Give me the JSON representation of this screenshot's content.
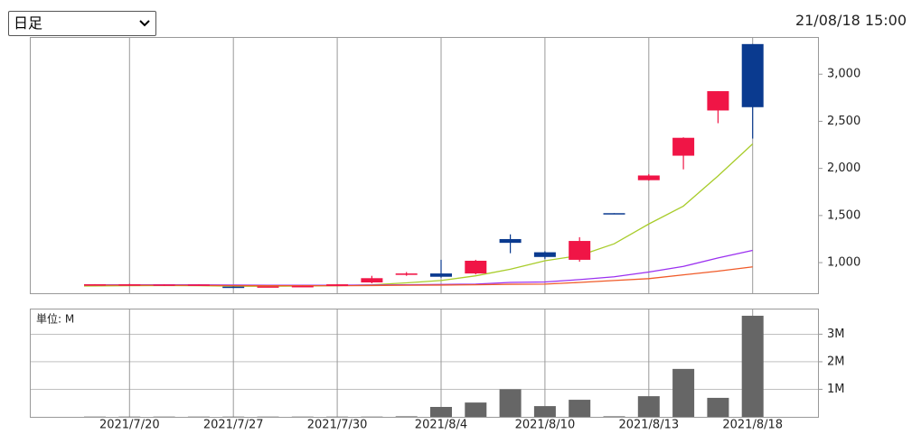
{
  "selector": "日足",
  "timestamp": "21/08/18 15:00",
  "chart_data": [
    {
      "type": "candlestick",
      "open": [
        770,
        755,
        755,
        758,
        745,
        745,
        748,
        752,
        790,
        870,
        885,
        885,
        1250,
        1110,
        1030,
        1525,
        1875,
        2135,
        2615,
        3320
      ],
      "high": [
        772,
        775,
        770,
        770,
        748,
        748,
        754,
        772,
        860,
        900,
        1030,
        1030,
        1300,
        1120,
        1270,
        1525,
        1940,
        2330,
        2820,
        3320
      ],
      "low": [
        768,
        752,
        752,
        755,
        730,
        743,
        746,
        750,
        780,
        860,
        840,
        875,
        1100,
        1040,
        1010,
        1520,
        1870,
        1990,
        2480,
        2317
      ],
      "close": [
        770,
        770,
        768,
        768,
        735,
        748,
        752,
        770,
        835,
        885,
        850,
        1020,
        1210,
        1060,
        1230,
        1520,
        1925,
        2325,
        2820,
        2650
      ],
      "up_color": "#f01546",
      "down_color": "#0a3a8f",
      "lines": [
        {
          "color": "#a8cc2a",
          "values": [
            752,
            755,
            757,
            755,
            750,
            750,
            752,
            755,
            765,
            785,
            810,
            860,
            930,
            1020,
            1075,
            1200,
            1410,
            1600,
            1920,
            2260
          ]
        },
        {
          "color": "#9b30f0",
          "values": [
            765,
            765,
            765,
            765,
            762,
            760,
            760,
            760,
            762,
            765,
            768,
            772,
            790,
            795,
            820,
            850,
            900,
            960,
            1050,
            1130
          ]
        },
        {
          "color": "#f05a28",
          "values": [
            760,
            760,
            760,
            758,
            756,
            755,
            755,
            755,
            757,
            760,
            762,
            765,
            770,
            772,
            790,
            810,
            830,
            870,
            910,
            955
          ]
        }
      ],
      "ylim": [
        675,
        3395
      ],
      "yticks": [
        {
          "value": 1000,
          "label": "1,000"
        },
        {
          "value": 1500,
          "label": "1,500"
        },
        {
          "value": 2000,
          "label": "2,000"
        },
        {
          "value": 2500,
          "label": "2,500"
        },
        {
          "value": 3000,
          "label": "3,000"
        }
      ]
    },
    {
      "type": "bar",
      "unit_label": "単位: M",
      "categories": [
        null,
        "2021/7/20",
        null,
        null,
        "2021/7/27",
        null,
        null,
        "2021/7/30",
        null,
        null,
        "2021/8/4",
        null,
        null,
        "2021/8/10",
        null,
        null,
        "2021/8/13",
        null,
        null,
        "2021/8/18"
      ],
      "values": [
        0.01,
        0.01,
        0.01,
        0.01,
        0.01,
        0.01,
        0.01,
        0.01,
        0.01,
        0.02,
        0.36,
        0.52,
        1.0,
        0.39,
        0.62,
        0.02,
        0.75,
        1.74,
        0.69,
        3.67
      ],
      "color": "#666666",
      "ylim": [
        0,
        3.93
      ],
      "yticks": [
        {
          "value": 1,
          "label": "1M"
        },
        {
          "value": 2,
          "label": "2M"
        },
        {
          "value": 3,
          "label": "3M"
        }
      ],
      "grid": true
    }
  ]
}
